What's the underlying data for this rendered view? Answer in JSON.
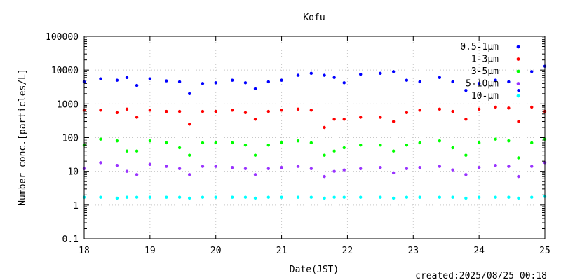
{
  "chart_data": {
    "type": "scatter",
    "title": "Kofu",
    "xlabel": "Date(JST)",
    "ylabel": "Number conc.[particles/L]",
    "x_ticks": [
      "18",
      "19",
      "20",
      "21",
      "22",
      "23",
      "24",
      "25"
    ],
    "y_ticks": [
      "0.1",
      "1",
      "10",
      "100",
      "1000",
      "10000",
      "100000"
    ],
    "xlim": [
      18,
      25
    ],
    "ylim": [
      0.1,
      100000
    ],
    "y_scale": "log",
    "grid": true,
    "legend_position": "top-right",
    "footer": "created:2025/08/25 00:18",
    "series": [
      {
        "name": "0.5-1μm",
        "color": "#0000ff",
        "x": [
          18.0,
          18.25,
          18.5,
          18.65,
          18.8,
          19.0,
          19.25,
          19.45,
          19.6,
          19.8,
          20.0,
          20.25,
          20.45,
          20.6,
          20.8,
          21.0,
          21.25,
          21.45,
          21.65,
          21.8,
          21.95,
          22.2,
          22.5,
          22.7,
          22.9,
          23.1,
          23.4,
          23.6,
          23.8,
          24.0,
          24.25,
          24.45,
          24.6,
          24.8,
          25.0
        ],
        "y": [
          4500,
          5500,
          5000,
          6000,
          3500,
          5500,
          4800,
          4500,
          2000,
          4000,
          4200,
          5000,
          4200,
          2800,
          4500,
          5000,
          7000,
          8000,
          7000,
          6000,
          4200,
          7500,
          8000,
          9000,
          5000,
          4500,
          6000,
          4500,
          2500,
          4000,
          5000,
          4500,
          2500,
          9000,
          13000
        ]
      },
      {
        "name": "1-3μm",
        "color": "#ff0000",
        "x": [
          18.0,
          18.25,
          18.5,
          18.65,
          18.8,
          19.0,
          19.25,
          19.45,
          19.6,
          19.8,
          20.0,
          20.25,
          20.45,
          20.6,
          20.8,
          21.0,
          21.25,
          21.45,
          21.65,
          21.8,
          21.95,
          22.2,
          22.5,
          22.7,
          22.9,
          23.1,
          23.4,
          23.6,
          23.8,
          24.0,
          24.25,
          24.45,
          24.6,
          24.8,
          25.0
        ],
        "y": [
          650,
          650,
          550,
          700,
          400,
          650,
          600,
          600,
          250,
          600,
          600,
          650,
          550,
          350,
          600,
          650,
          700,
          650,
          200,
          350,
          350,
          400,
          400,
          300,
          550,
          650,
          700,
          600,
          350,
          700,
          800,
          750,
          300,
          800,
          600
        ]
      },
      {
        "name": "3-5μm",
        "color": "#00ff00",
        "x": [
          18.0,
          18.25,
          18.5,
          18.65,
          18.8,
          19.0,
          19.25,
          19.45,
          19.6,
          19.8,
          20.0,
          20.25,
          20.45,
          20.6,
          20.8,
          21.0,
          21.25,
          21.45,
          21.65,
          21.8,
          21.95,
          22.2,
          22.5,
          22.7,
          22.9,
          23.1,
          23.4,
          23.6,
          23.8,
          24.0,
          24.25,
          24.45,
          24.6,
          24.8,
          25.0
        ],
        "y": [
          60,
          90,
          80,
          40,
          40,
          80,
          70,
          50,
          30,
          70,
          70,
          70,
          60,
          30,
          60,
          70,
          80,
          70,
          30,
          40,
          50,
          60,
          60,
          40,
          60,
          70,
          80,
          50,
          30,
          70,
          90,
          80,
          25,
          70,
          90
        ]
      },
      {
        "name": "5-10μm",
        "color": "#9933ff",
        "x": [
          18.0,
          18.25,
          18.5,
          18.65,
          18.8,
          19.0,
          19.25,
          19.45,
          19.6,
          19.8,
          20.0,
          20.25,
          20.45,
          20.6,
          20.8,
          21.0,
          21.25,
          21.45,
          21.65,
          21.8,
          21.95,
          22.2,
          22.5,
          22.7,
          22.9,
          23.1,
          23.4,
          23.6,
          23.8,
          24.0,
          24.25,
          24.45,
          24.6,
          24.8,
          25.0
        ],
        "y": [
          12,
          18,
          15,
          10,
          8,
          16,
          14,
          12,
          8,
          14,
          14,
          13,
          12,
          8,
          12,
          13,
          14,
          12,
          7,
          10,
          11,
          12,
          13,
          9,
          12,
          13,
          14,
          11,
          8,
          13,
          15,
          14,
          7,
          14,
          18
        ]
      },
      {
        "name": "10-μm",
        "color": "#00ffff",
        "x": [
          18.0,
          18.25,
          18.5,
          18.65,
          18.8,
          19.0,
          19.25,
          19.45,
          19.6,
          19.8,
          20.0,
          20.25,
          20.45,
          20.6,
          20.8,
          21.0,
          21.25,
          21.45,
          21.65,
          21.8,
          21.95,
          22.2,
          22.5,
          22.7,
          22.9,
          23.1,
          23.4,
          23.6,
          23.8,
          24.0,
          24.25,
          24.45,
          24.6,
          24.8,
          25.0
        ],
        "y": [
          1.7,
          1.7,
          1.6,
          1.7,
          1.7,
          1.7,
          1.7,
          1.7,
          1.6,
          1.7,
          1.7,
          1.7,
          1.7,
          1.6,
          1.7,
          1.7,
          1.7,
          1.7,
          1.6,
          1.7,
          1.7,
          1.7,
          1.7,
          1.6,
          1.7,
          1.7,
          1.7,
          1.7,
          1.6,
          1.7,
          1.7,
          1.7,
          1.6,
          1.7,
          1.8
        ]
      }
    ]
  }
}
